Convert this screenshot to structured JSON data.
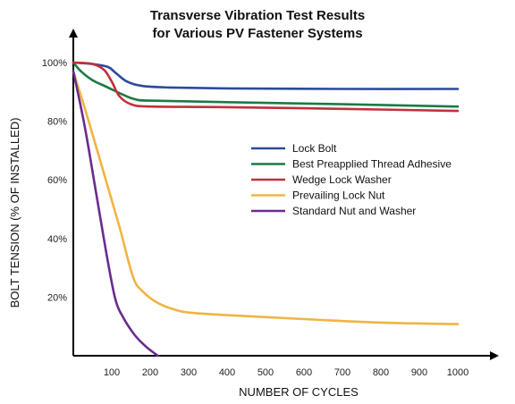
{
  "chart_data": {
    "type": "line",
    "title_line1": "Transverse Vibration Test Results",
    "title_line2": "for Various PV Fastener Systems",
    "xlabel": "NUMBER OF CYCLES",
    "ylabel": "BOLT TENSION (% OF INSTALLED)",
    "xlim": [
      0,
      1050
    ],
    "ylim": [
      0,
      100
    ],
    "x_ticks": [
      100,
      200,
      300,
      400,
      500,
      600,
      700,
      800,
      900,
      1000
    ],
    "y_ticks": [
      {
        "value": 20,
        "label": "20%"
      },
      {
        "value": 40,
        "label": "40%"
      },
      {
        "value": 60,
        "label": "60%"
      },
      {
        "value": 80,
        "label": "80%"
      },
      {
        "value": 100,
        "label": "100%"
      }
    ],
    "legend_position": "center-right",
    "series": [
      {
        "name": "Lock Bolt",
        "color": "#2b4a9b",
        "points": [
          [
            0,
            100
          ],
          [
            50,
            99.5
          ],
          [
            90,
            98.5
          ],
          [
            110,
            96.5
          ],
          [
            140,
            93.5
          ],
          [
            180,
            92
          ],
          [
            250,
            91.5
          ],
          [
            400,
            91.2
          ],
          [
            700,
            91
          ],
          [
            1000,
            91
          ]
        ]
      },
      {
        "name": "Best Preapplied Thread Adhesive",
        "color": "#1c7a44",
        "points": [
          [
            0,
            100
          ],
          [
            20,
            97
          ],
          [
            50,
            94
          ],
          [
            90,
            91.5
          ],
          [
            130,
            89
          ],
          [
            160,
            87.5
          ],
          [
            200,
            87
          ],
          [
            400,
            86.5
          ],
          [
            700,
            85.8
          ],
          [
            1000,
            85
          ]
        ]
      },
      {
        "name": "Wedge Lock Washer",
        "color": "#c0303b",
        "points": [
          [
            0,
            100
          ],
          [
            50,
            99.5
          ],
          [
            80,
            97.5
          ],
          [
            100,
            93.5
          ],
          [
            120,
            88.5
          ],
          [
            150,
            85.8
          ],
          [
            200,
            85
          ],
          [
            400,
            84.8
          ],
          [
            700,
            84.2
          ],
          [
            1000,
            83.5
          ]
        ]
      },
      {
        "name": "Prevailing Lock Nut",
        "color": "#f0b444",
        "points": [
          [
            0,
            97
          ],
          [
            40,
            80
          ],
          [
            80,
            62
          ],
          [
            120,
            44
          ],
          [
            155,
            27
          ],
          [
            180,
            22
          ],
          [
            220,
            18
          ],
          [
            270,
            15.5
          ],
          [
            320,
            14.5
          ],
          [
            450,
            13.5
          ],
          [
            600,
            12.5
          ],
          [
            800,
            11.3
          ],
          [
            1000,
            10.8
          ]
        ]
      },
      {
        "name": "Standard Nut and Washer",
        "color": "#6a2b8f",
        "points": [
          [
            0,
            97
          ],
          [
            30,
            78
          ],
          [
            60,
            55
          ],
          [
            90,
            32
          ],
          [
            110,
            19
          ],
          [
            130,
            13
          ],
          [
            160,
            7
          ],
          [
            190,
            3
          ],
          [
            220,
            0
          ]
        ]
      }
    ]
  }
}
